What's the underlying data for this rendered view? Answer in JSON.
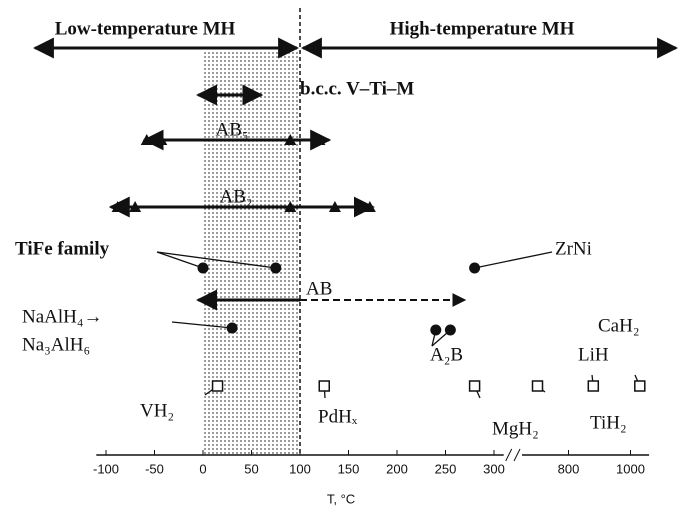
{
  "chart_data": {
    "type": "range",
    "header": {
      "left": "Low-temperature MH",
      "right": "High-temperature MH"
    },
    "xlabel": "T, °C",
    "xlim": [
      -110,
      1060
    ],
    "xbreak": [
      310,
      650
    ],
    "xticks": [
      -100,
      -50,
      0,
      50,
      100,
      150,
      200,
      250,
      300,
      800,
      1000
    ],
    "divider": 100,
    "shaded": [
      0,
      100
    ],
    "ranges": [
      {
        "name": "b.c.c. V–Ti–M",
        "min": -5,
        "max": 60
      },
      {
        "name": "AB₅",
        "min": -60,
        "max": 130,
        "markers": [
          -58,
          -43,
          90,
          120
        ]
      },
      {
        "name": "AB₂",
        "min": -95,
        "max": 175,
        "markers": [
          -88,
          -70,
          90,
          136,
          172
        ]
      },
      {
        "name": "AB",
        "min": -5,
        "max": 100,
        "dashed_max": 270
      }
    ],
    "points": [
      {
        "name": "TiFe family",
        "values": [
          0,
          75
        ]
      },
      {
        "name": "ZrNi",
        "values": [
          280
        ]
      },
      {
        "name": [
          "NaAlH₄→",
          "Na₃AlH₆"
        ],
        "values": [
          30
        ]
      },
      {
        "name": "A₂B",
        "values": [
          240,
          255
        ]
      }
    ],
    "hydrides": [
      {
        "name": "VH₂",
        "value": 15
      },
      {
        "name": "PdHₓ",
        "value": 125
      },
      {
        "name": "MgH₂",
        "value": 280
      },
      {
        "name": "TiH₂",
        "value": 700
      },
      {
        "name": "LiH",
        "value": 880
      },
      {
        "name": "CaH₂",
        "value": 1030
      }
    ]
  }
}
